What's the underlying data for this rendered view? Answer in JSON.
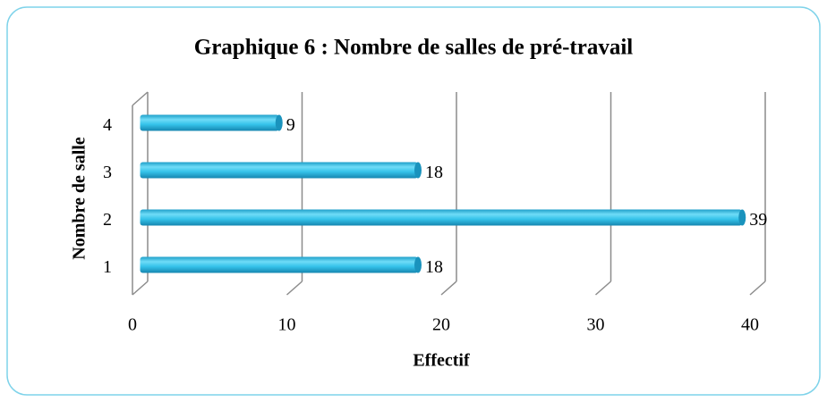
{
  "chart_data": {
    "type": "bar",
    "orientation": "horizontal",
    "title": "Graphique 6 : Nombre de salles de pré-travail",
    "x_label": "Effectif",
    "y_label": "Nombre de salle",
    "categories": [
      "1",
      "2",
      "3",
      "4"
    ],
    "values": [
      18,
      39,
      18,
      9
    ],
    "color": "#35c3ea",
    "xlim": [
      0,
      40
    ],
    "xticks": [
      0,
      10,
      20,
      30,
      40
    ],
    "grid": true
  }
}
